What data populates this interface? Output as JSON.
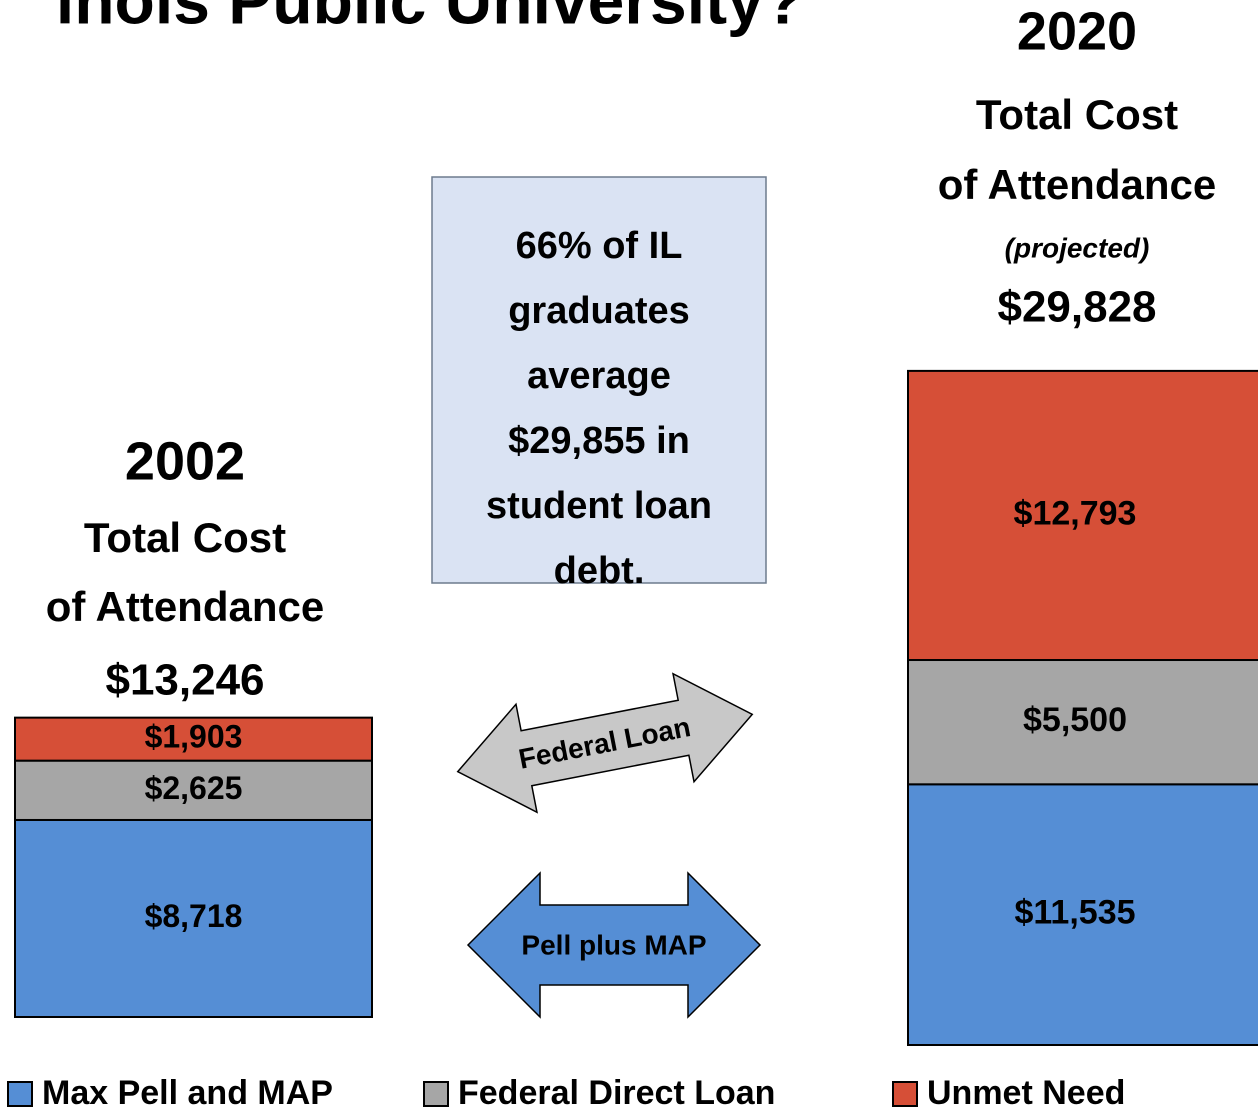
{
  "chart_data": {
    "type": "stacked_bar",
    "title": "inois Public University?",
    "categories": [
      "2002",
      "2020"
    ],
    "heading_lines": [
      [
        "Total Cost",
        "of Attendance"
      ],
      [
        "Total Cost",
        "of Attendance",
        "(projected)"
      ]
    ],
    "total_labels": [
      "$13,246",
      "$29,828"
    ],
    "series": [
      {
        "name": "Max Pell and MAP",
        "color": "#558ed5",
        "values": [
          8718,
          11535
        ],
        "value_labels": [
          "$8,718",
          "$11,535"
        ]
      },
      {
        "name": "Federal Direct Loan",
        "color": "#a6a6a6",
        "values": [
          2625,
          5500
        ],
        "value_labels": [
          "$2,625",
          "$5,500"
        ]
      },
      {
        "name": "Unmet Need",
        "color": "#d64f37",
        "values": [
          1903,
          12793
        ],
        "value_labels": [
          "$1,903",
          "$12,793"
        ]
      }
    ],
    "callout": [
      "66% of  IL",
      "graduates",
      "average",
      "$29,855 in",
      "student loan",
      "debt."
    ],
    "arrow_labels": [
      "Federal Loan",
      "Pell plus MAP"
    ]
  }
}
